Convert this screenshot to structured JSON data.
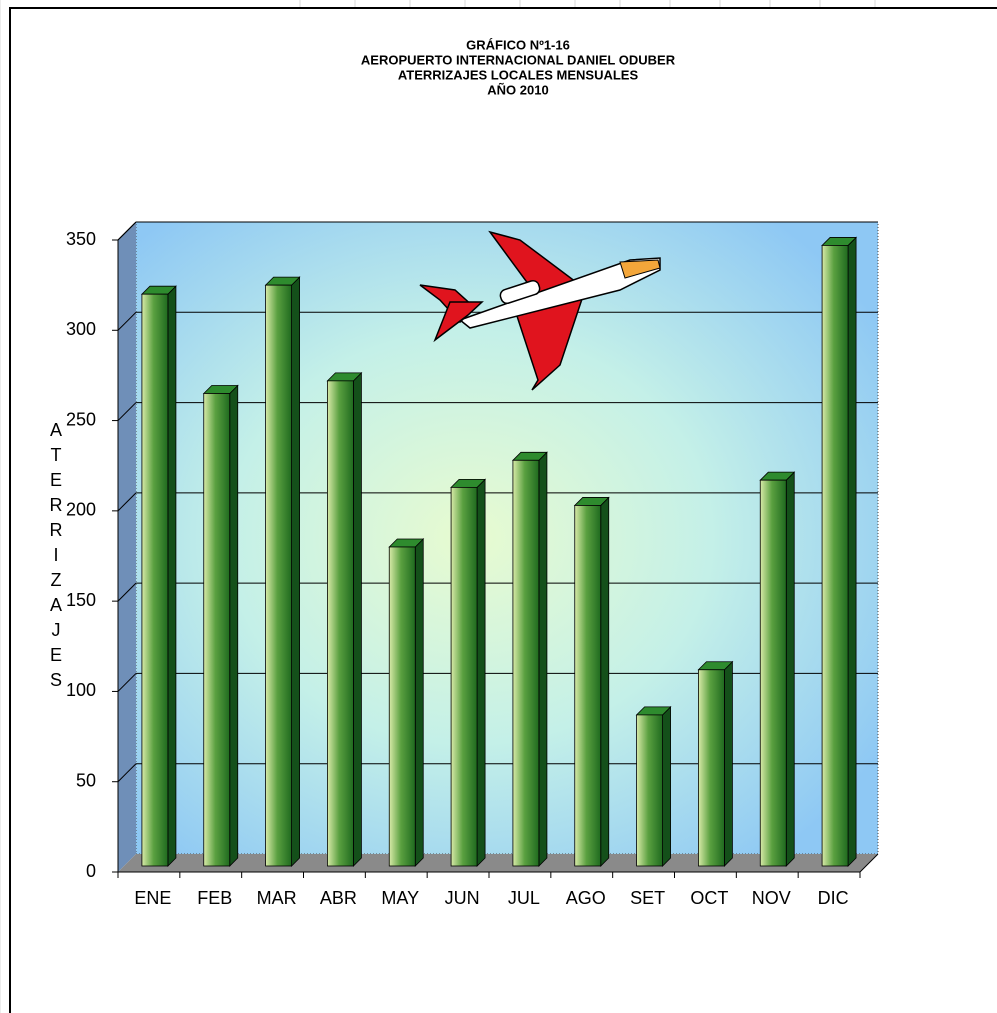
{
  "chart_data": {
    "type": "bar",
    "title": [
      "GRÁFICO Nº1-16",
      "AEROPUERTO INTERNACIONAL DANIEL ODUBER",
      "ATERRIZAJES LOCALES MENSUALES",
      "AÑO 2010"
    ],
    "y_label": "ATERRIZAJES",
    "categories": [
      "ENE",
      "FEB",
      "MAR",
      "ABR",
      "MAY",
      "JUN",
      "JUL",
      "AGO",
      "SET",
      "OCT",
      "NOV",
      "DIC"
    ],
    "values": [
      320,
      265,
      325,
      272,
      180,
      213,
      228,
      203,
      87,
      112,
      217,
      347
    ],
    "color": "#2e8b2e",
    "ylim": [
      0,
      350
    ],
    "yticks": [
      0,
      50,
      100,
      150,
      200,
      250,
      300,
      350
    ],
    "grid": true
  }
}
